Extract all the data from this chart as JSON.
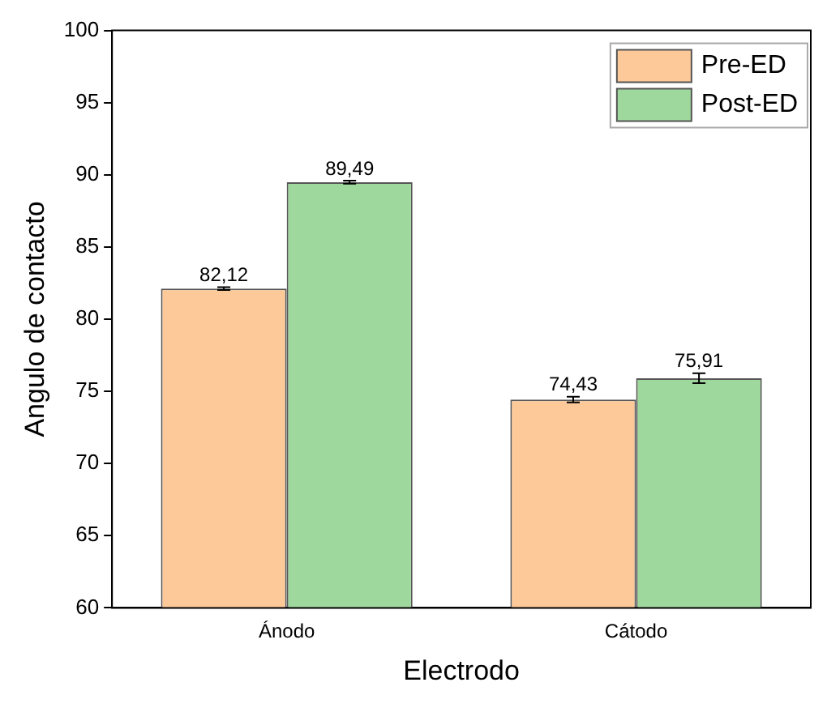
{
  "chart_data": {
    "type": "bar",
    "xlabel": "Electrodo",
    "ylabel": "Angulo de contacto",
    "categories": [
      "Ánodo",
      "Cátodo"
    ],
    "series": [
      {
        "name": "Pre-ED",
        "color": "#fdc998",
        "values": [
          82.12,
          74.43
        ],
        "errors": [
          0.1,
          0.2
        ],
        "value_labels": [
          "82,12",
          "74,43"
        ]
      },
      {
        "name": "Post-ED",
        "color": "#9fd89c",
        "values": [
          89.49,
          75.91
        ],
        "errors": [
          0.1,
          0.35
        ],
        "value_labels": [
          "89,49",
          "75,91"
        ]
      }
    ],
    "ylim": [
      60,
      100
    ],
    "yticks": [
      60,
      65,
      70,
      75,
      80,
      85,
      90,
      95,
      100
    ],
    "legend": "top right",
    "grid": false
  }
}
